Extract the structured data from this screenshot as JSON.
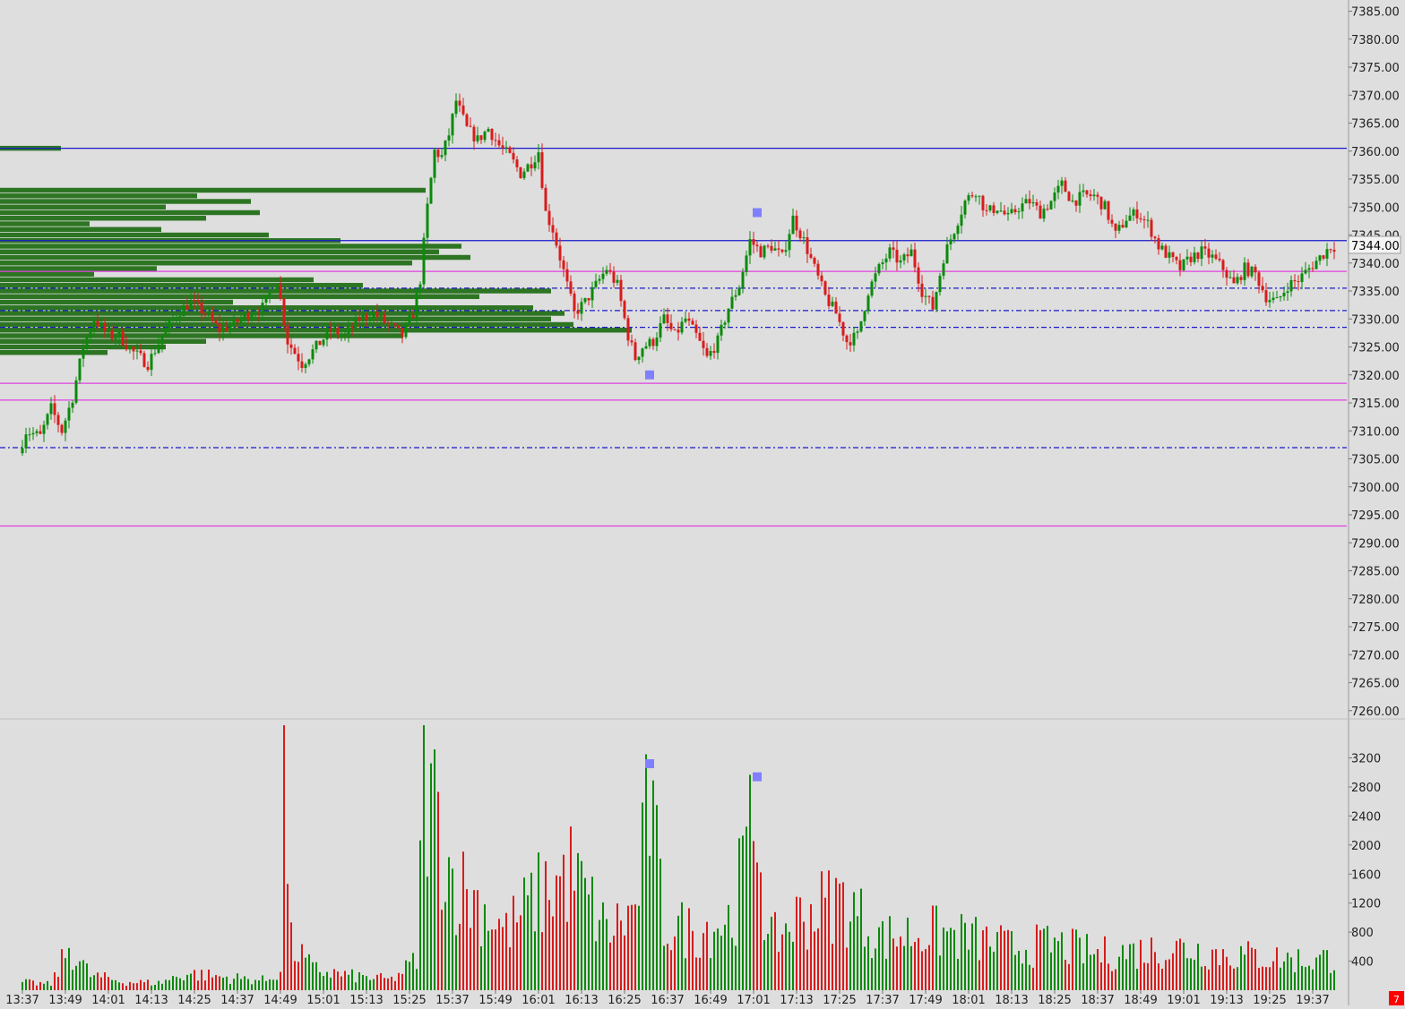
{
  "colors": {
    "background": "#dedede",
    "up": "#0a8a0a",
    "down": "#d81c1c",
    "profile": "#1d6b12",
    "level_blue": "#1a1acc",
    "level_magenta": "#e040e0",
    "marker": "#8080ff",
    "alert": "#ff0000"
  },
  "alert_badge": "7",
  "current_price_label": "7344.00",
  "chart_data": [
    {
      "type": "candlestick",
      "price_axis": {
        "ylim": [
          7259,
          7387
        ],
        "ticks": [
          "7385.00",
          "7380.00",
          "7375.00",
          "7370.00",
          "7365.00",
          "7360.00",
          "7355.00",
          "7350.00",
          "7345.00",
          "7340.00",
          "7335.00",
          "7330.00",
          "7325.00",
          "7320.00",
          "7315.00",
          "7310.00",
          "7305.00",
          "7300.00",
          "7295.00",
          "7290.00",
          "7285.00",
          "7280.00",
          "7275.00",
          "7270.00",
          "7265.00",
          "7260.00"
        ]
      },
      "time_axis": {
        "ticks": [
          "13:37",
          "13:49",
          "14:01",
          "14:13",
          "14:25",
          "14:37",
          "14:49",
          "15:01",
          "15:13",
          "15:25",
          "15:37",
          "15:49",
          "16:01",
          "16:13",
          "16:25",
          "16:37",
          "16:49",
          "17:01",
          "17:13",
          "17:25",
          "17:37",
          "17:49",
          "18:01",
          "18:13",
          "18:25",
          "18:37",
          "18:49",
          "19:01",
          "19:13",
          "19:25",
          "19:37"
        ]
      },
      "levels": [
        {
          "price": 7360.5,
          "style": "solid",
          "color": "blue"
        },
        {
          "price": 7344.0,
          "style": "solid",
          "color": "blue"
        },
        {
          "price": 7338.5,
          "style": "solid",
          "color": "magenta"
        },
        {
          "price": 7335.5,
          "style": "dashdot",
          "color": "blue"
        },
        {
          "price": 7331.5,
          "style": "dashdot",
          "color": "blue"
        },
        {
          "price": 7328.5,
          "style": "dashdot",
          "color": "blue"
        },
        {
          "price": 7318.5,
          "style": "solid",
          "color": "magenta"
        },
        {
          "price": 7315.5,
          "style": "solid",
          "color": "magenta"
        },
        {
          "price": 7307.0,
          "style": "dashdot",
          "color": "blue"
        },
        {
          "price": 7293.0,
          "style": "solid",
          "color": "magenta"
        }
      ],
      "price_markers": [
        {
          "time": "16:32",
          "price": 7320.0
        },
        {
          "time": "17:02",
          "price": 7349.0
        }
      ],
      "price_path": [
        [
          "13:37",
          7306
        ],
        [
          "13:39",
          7310
        ],
        [
          "13:43",
          7309
        ],
        [
          "13:46",
          7314
        ],
        [
          "13:49",
          7310
        ],
        [
          "13:52",
          7316
        ],
        [
          "13:55",
          7325
        ],
        [
          "13:58",
          7330
        ],
        [
          "14:02",
          7327
        ],
        [
          "14:05",
          7327
        ],
        [
          "14:09",
          7324
        ],
        [
          "14:13",
          7322
        ],
        [
          "14:17",
          7327
        ],
        [
          "14:21",
          7331
        ],
        [
          "14:25",
          7333
        ],
        [
          "14:29",
          7331
        ],
        [
          "14:33",
          7328
        ],
        [
          "14:37",
          7329
        ],
        [
          "14:41",
          7331
        ],
        [
          "14:45",
          7332
        ],
        [
          "14:49",
          7337
        ],
        [
          "14:52",
          7326
        ],
        [
          "14:56",
          7322
        ],
        [
          "15:00",
          7325
        ],
        [
          "15:04",
          7328
        ],
        [
          "15:08",
          7327
        ],
        [
          "15:12",
          7330
        ],
        [
          "15:16",
          7331
        ],
        [
          "15:20",
          7329
        ],
        [
          "15:24",
          7327
        ],
        [
          "15:27",
          7331
        ],
        [
          "15:29",
          7337
        ],
        [
          "15:31",
          7350
        ],
        [
          "15:33",
          7360
        ],
        [
          "15:35",
          7359
        ],
        [
          "15:37",
          7363
        ],
        [
          "15:39",
          7369
        ],
        [
          "15:42",
          7364
        ],
        [
          "15:45",
          7362
        ],
        [
          "15:48",
          7364
        ],
        [
          "15:51",
          7361
        ],
        [
          "15:54",
          7359
        ],
        [
          "15:57",
          7356
        ],
        [
          "16:00",
          7358
        ],
        [
          "16:02",
          7360
        ],
        [
          "16:04",
          7349
        ],
        [
          "16:06",
          7346
        ],
        [
          "16:08",
          7341
        ],
        [
          "16:10",
          7336
        ],
        [
          "16:12",
          7331
        ],
        [
          "16:15",
          7333
        ],
        [
          "16:18",
          7336
        ],
        [
          "16:21",
          7339
        ],
        [
          "16:24",
          7336
        ],
        [
          "16:27",
          7327
        ],
        [
          "16:29",
          7323
        ],
        [
          "16:31",
          7325
        ],
        [
          "16:34",
          7326
        ],
        [
          "16:37",
          7330
        ],
        [
          "16:40",
          7327
        ],
        [
          "16:43",
          7330
        ],
        [
          "16:46",
          7327
        ],
        [
          "16:49",
          7323
        ],
        [
          "16:52",
          7326
        ],
        [
          "16:55",
          7332
        ],
        [
          "16:58",
          7336
        ],
        [
          "17:01",
          7344
        ],
        [
          "17:04",
          7342
        ],
        [
          "17:07",
          7343
        ],
        [
          "17:10",
          7341
        ],
        [
          "17:13",
          7348
        ],
        [
          "17:16",
          7344
        ],
        [
          "17:19",
          7339
        ],
        [
          "17:22",
          7334
        ],
        [
          "17:25",
          7331
        ],
        [
          "17:28",
          7326
        ],
        [
          "17:31",
          7327
        ],
        [
          "17:34",
          7335
        ],
        [
          "17:37",
          7339
        ],
        [
          "17:40",
          7342
        ],
        [
          "17:43",
          7340
        ],
        [
          "17:46",
          7342
        ],
        [
          "17:49",
          7335
        ],
        [
          "17:52",
          7332
        ],
        [
          "17:55",
          7341
        ],
        [
          "17:58",
          7346
        ],
        [
          "18:01",
          7351
        ],
        [
          "18:04",
          7353
        ],
        [
          "18:07",
          7349
        ],
        [
          "18:10",
          7350
        ],
        [
          "18:13",
          7348
        ],
        [
          "18:16",
          7350
        ],
        [
          "18:19",
          7351
        ],
        [
          "18:22",
          7349
        ],
        [
          "18:25",
          7351
        ],
        [
          "18:28",
          7354
        ],
        [
          "18:31",
          7351
        ],
        [
          "18:34",
          7352
        ],
        [
          "18:37",
          7352
        ],
        [
          "18:40",
          7350
        ],
        [
          "18:43",
          7345
        ],
        [
          "18:46",
          7348
        ],
        [
          "18:49",
          7349
        ],
        [
          "18:52",
          7347
        ],
        [
          "18:55",
          7343
        ],
        [
          "18:58",
          7341
        ],
        [
          "19:01",
          7339
        ],
        [
          "19:04",
          7341
        ],
        [
          "19:07",
          7342
        ],
        [
          "19:10",
          7341
        ],
        [
          "19:13",
          7339
        ],
        [
          "19:16",
          7336
        ],
        [
          "19:19",
          7339
        ],
        [
          "19:22",
          7338
        ],
        [
          "19:25",
          7334
        ],
        [
          "19:28",
          7333
        ],
        [
          "19:31",
          7336
        ],
        [
          "19:34",
          7337
        ],
        [
          "19:37",
          7339
        ],
        [
          "19:40",
          7341
        ],
        [
          "19:43",
          7343
        ]
      ],
      "volume_profile": [
        {
          "price": 7360.5,
          "vol": 68
        },
        {
          "price": 7353.0,
          "vol": 475
        },
        {
          "price": 7352.0,
          "vol": 220
        },
        {
          "price": 7351.0,
          "vol": 280
        },
        {
          "price": 7350.0,
          "vol": 185
        },
        {
          "price": 7349.0,
          "vol": 290
        },
        {
          "price": 7348.0,
          "vol": 230
        },
        {
          "price": 7347.0,
          "vol": 100
        },
        {
          "price": 7346.0,
          "vol": 180
        },
        {
          "price": 7345.0,
          "vol": 300
        },
        {
          "price": 7344.0,
          "vol": 380
        },
        {
          "price": 7343.0,
          "vol": 515
        },
        {
          "price": 7342.0,
          "vol": 490
        },
        {
          "price": 7341.0,
          "vol": 525
        },
        {
          "price": 7340.0,
          "vol": 460
        },
        {
          "price": 7339.0,
          "vol": 175
        },
        {
          "price": 7338.0,
          "vol": 105
        },
        {
          "price": 7337.0,
          "vol": 350
        },
        {
          "price": 7336.0,
          "vol": 405
        },
        {
          "price": 7335.0,
          "vol": 615
        },
        {
          "price": 7334.0,
          "vol": 535
        },
        {
          "price": 7333.0,
          "vol": 260
        },
        {
          "price": 7332.0,
          "vol": 595
        },
        {
          "price": 7331.0,
          "vol": 630
        },
        {
          "price": 7330.0,
          "vol": 615
        },
        {
          "price": 7329.0,
          "vol": 640
        },
        {
          "price": 7328.0,
          "vol": 705
        },
        {
          "price": 7327.0,
          "vol": 450
        },
        {
          "price": 7326.0,
          "vol": 230
        },
        {
          "price": 7325.0,
          "vol": 185
        },
        {
          "price": 7324.0,
          "vol": 120
        }
      ]
    },
    {
      "type": "bar",
      "title": "",
      "ylim": [
        0,
        3700
      ],
      "ticks": [
        "400",
        "800",
        "1200",
        "1600",
        "2000",
        "2400",
        "2800",
        "3200"
      ],
      "volume_markers": [
        {
          "time": "16:32",
          "value": 3120
        },
        {
          "time": "17:02",
          "value": 2940
        }
      ],
      "volume_path": [
        [
          "13:37",
          120
        ],
        [
          "13:45",
          90
        ],
        [
          "13:50",
          650
        ],
        [
          "13:56",
          230
        ],
        [
          "14:05",
          130
        ],
        [
          "14:15",
          110
        ],
        [
          "14:23",
          260
        ],
        [
          "14:33",
          200
        ],
        [
          "14:45",
          150
        ],
        [
          "14:49",
          300
        ],
        [
          "14:50",
          3450
        ],
        [
          "14:52",
          700
        ],
        [
          "14:58",
          320
        ],
        [
          "15:08",
          220
        ],
        [
          "15:20",
          160
        ],
        [
          "15:27",
          450
        ],
        [
          "15:29",
          3200
        ],
        [
          "15:33",
          2600
        ],
        [
          "15:37",
          1700
        ],
        [
          "15:45",
          1300
        ],
        [
          "15:52",
          900
        ],
        [
          "16:00",
          1400
        ],
        [
          "16:10",
          1800
        ],
        [
          "16:20",
          900
        ],
        [
          "16:28",
          1200
        ],
        [
          "16:32",
          2900
        ],
        [
          "16:36",
          1000
        ],
        [
          "16:45",
          900
        ],
        [
          "16:55",
          1100
        ],
        [
          "17:02",
          2800
        ],
        [
          "17:05",
          700
        ],
        [
          "17:13",
          1100
        ],
        [
          "17:25",
          1400
        ],
        [
          "17:37",
          800
        ],
        [
          "17:49",
          900
        ],
        [
          "18:01",
          800
        ],
        [
          "18:13",
          650
        ],
        [
          "18:25",
          700
        ],
        [
          "18:37",
          550
        ],
        [
          "18:49",
          600
        ],
        [
          "19:01",
          650
        ],
        [
          "19:13",
          550
        ],
        [
          "19:25",
          500
        ],
        [
          "19:37",
          450
        ],
        [
          "19:43",
          500
        ]
      ]
    }
  ]
}
